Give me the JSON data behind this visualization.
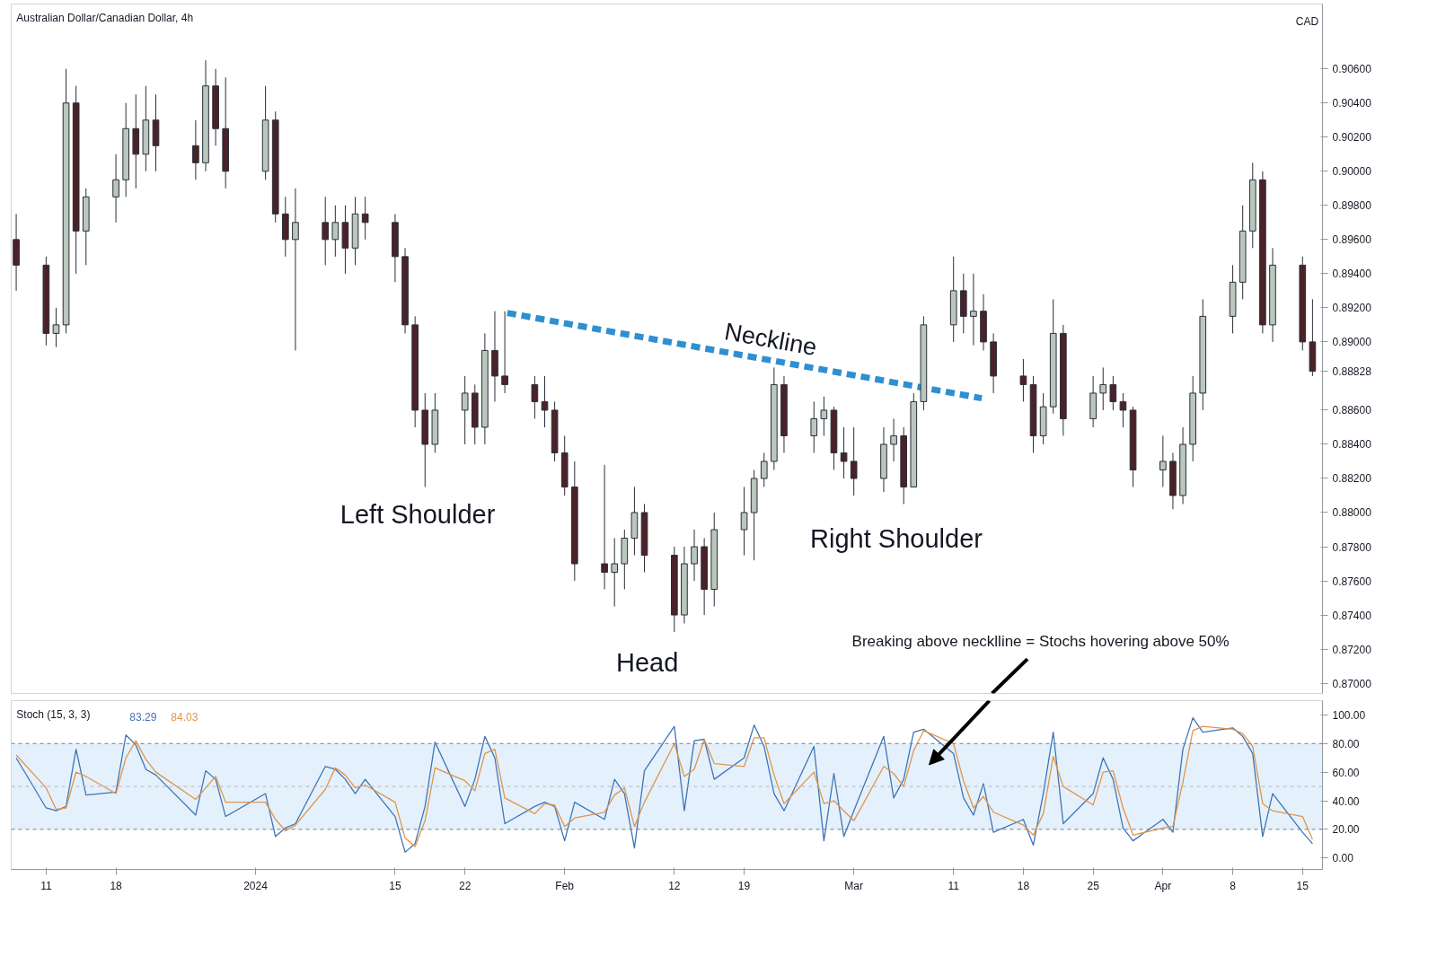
{
  "chart_data": [
    {
      "type": "candlestick",
      "title": "Australian Dollar/Canadian Dollar, 4h",
      "tick_labels": "y",
      "x": [
        "2023-12-08",
        "2023-12-11",
        "2023-12-12",
        "2023-12-13",
        "2023-12-14",
        "2023-12-15",
        "2023-12-18",
        "2023-12-19",
        "2023-12-20",
        "2023-12-21",
        "2023-12-22",
        "2023-12-26",
        "2023-12-27",
        "2023-12-28",
        "2023-12-29",
        "2024-01-02",
        "2024-01-03",
        "2024-01-04",
        "2024-01-05",
        "2024-01-08",
        "2024-01-09",
        "2024-01-10",
        "2024-01-11",
        "2024-01-12",
        "2024-01-15",
        "2024-01-16",
        "2024-01-17",
        "2024-01-18",
        "2024-01-19",
        "2024-01-22",
        "2024-01-23",
        "2024-01-24",
        "2024-01-25",
        "2024-01-26",
        "2024-01-29",
        "2024-01-30",
        "2024-01-31",
        "2024-02-01",
        "2024-02-02",
        "2024-02-05",
        "2024-02-06",
        "2024-02-07",
        "2024-02-08",
        "2024-02-09",
        "2024-02-12",
        "2024-02-13",
        "2024-02-14",
        "2024-02-15",
        "2024-02-16",
        "2024-02-19",
        "2024-02-20",
        "2024-02-21",
        "2024-02-22",
        "2024-02-23",
        "2024-02-26",
        "2024-02-27",
        "2024-02-28",
        "2024-02-29",
        "2024-03-01",
        "2024-03-04",
        "2024-03-05",
        "2024-03-06",
        "2024-03-07",
        "2024-03-08",
        "2024-03-11",
        "2024-03-12",
        "2024-03-13",
        "2024-03-14",
        "2024-03-15",
        "2024-03-18",
        "2024-03-19",
        "2024-03-20",
        "2024-03-21",
        "2024-03-22",
        "2024-03-25",
        "2024-03-26",
        "2024-03-27",
        "2024-03-28",
        "2024-03-29",
        "2024-04-01",
        "2024-04-02",
        "2024-04-03",
        "2024-04-04",
        "2024-04-05",
        "2024-04-08",
        "2024-04-09",
        "2024-04-10",
        "2024-04-11",
        "2024-04-12",
        "2024-04-15",
        "2024-04-16"
      ],
      "ohlc": [
        [
          0.896,
          0.8975,
          0.893,
          0.8945
        ],
        [
          0.8945,
          0.895,
          0.8898,
          0.8905
        ],
        [
          0.8905,
          0.892,
          0.8897,
          0.891
        ],
        [
          0.891,
          0.906,
          0.8905,
          0.904
        ],
        [
          0.904,
          0.905,
          0.894,
          0.8965
        ],
        [
          0.8965,
          0.899,
          0.8945,
          0.8985
        ],
        [
          0.8985,
          0.901,
          0.897,
          0.8995
        ],
        [
          0.8995,
          0.904,
          0.8985,
          0.9025
        ],
        [
          0.9025,
          0.9045,
          0.899,
          0.901
        ],
        [
          0.901,
          0.905,
          0.9,
          0.903
        ],
        [
          0.903,
          0.9045,
          0.9,
          0.9015
        ],
        [
          0.9015,
          0.903,
          0.8995,
          0.9005
        ],
        [
          0.9005,
          0.9065,
          0.9,
          0.905
        ],
        [
          0.905,
          0.906,
          0.9015,
          0.9025
        ],
        [
          0.9025,
          0.9055,
          0.899,
          0.9
        ],
        [
          0.9,
          0.905,
          0.8995,
          0.903
        ],
        [
          0.903,
          0.9035,
          0.897,
          0.8975
        ],
        [
          0.8975,
          0.8985,
          0.895,
          0.896
        ],
        [
          0.896,
          0.899,
          0.8895,
          0.897
        ],
        [
          0.897,
          0.8985,
          0.8945,
          0.896
        ],
        [
          0.896,
          0.898,
          0.895,
          0.897
        ],
        [
          0.897,
          0.898,
          0.894,
          0.8955
        ],
        [
          0.8955,
          0.8985,
          0.8945,
          0.8975
        ],
        [
          0.8975,
          0.8985,
          0.896,
          0.897
        ],
        [
          0.897,
          0.8975,
          0.8935,
          0.895
        ],
        [
          0.895,
          0.8955,
          0.8905,
          0.891
        ],
        [
          0.891,
          0.8915,
          0.885,
          0.886
        ],
        [
          0.886,
          0.887,
          0.8815,
          0.884
        ],
        [
          0.884,
          0.887,
          0.8835,
          0.886
        ],
        [
          0.886,
          0.888,
          0.884,
          0.887
        ],
        [
          0.887,
          0.8875,
          0.884,
          0.885
        ],
        [
          0.885,
          0.8905,
          0.884,
          0.8895
        ],
        [
          0.8895,
          0.8918,
          0.8865,
          0.888
        ],
        [
          0.888,
          0.8918,
          0.887,
          0.8875
        ],
        [
          0.8875,
          0.888,
          0.8855,
          0.8865
        ],
        [
          0.8865,
          0.888,
          0.885,
          0.886
        ],
        [
          0.886,
          0.8865,
          0.883,
          0.8835
        ],
        [
          0.8835,
          0.8845,
          0.881,
          0.8815
        ],
        [
          0.8815,
          0.883,
          0.876,
          0.877
        ],
        [
          0.877,
          0.8828,
          0.8755,
          0.8765
        ],
        [
          0.8765,
          0.8785,
          0.8745,
          0.877
        ],
        [
          0.877,
          0.879,
          0.8755,
          0.8785
        ],
        [
          0.8785,
          0.8815,
          0.8775,
          0.88
        ],
        [
          0.88,
          0.8805,
          0.8765,
          0.8775
        ],
        [
          0.8775,
          0.878,
          0.873,
          0.874
        ],
        [
          0.874,
          0.878,
          0.8735,
          0.877
        ],
        [
          0.877,
          0.879,
          0.876,
          0.878
        ],
        [
          0.878,
          0.8785,
          0.874,
          0.8755
        ],
        [
          0.8755,
          0.88,
          0.8745,
          0.879
        ],
        [
          0.879,
          0.8815,
          0.8775,
          0.88
        ],
        [
          0.88,
          0.8825,
          0.8772,
          0.882
        ],
        [
          0.882,
          0.8835,
          0.8815,
          0.883
        ],
        [
          0.883,
          0.8885,
          0.8825,
          0.8875
        ],
        [
          0.8875,
          0.888,
          0.8835,
          0.8845
        ],
        [
          0.8845,
          0.8865,
          0.8835,
          0.8855
        ],
        [
          0.8855,
          0.8868,
          0.8845,
          0.886
        ],
        [
          0.886,
          0.8862,
          0.8825,
          0.8835
        ],
        [
          0.8835,
          0.885,
          0.882,
          0.883
        ],
        [
          0.883,
          0.885,
          0.881,
          0.882
        ],
        [
          0.882,
          0.885,
          0.8812,
          0.884
        ],
        [
          0.884,
          0.8855,
          0.883,
          0.8845
        ],
        [
          0.8845,
          0.885,
          0.8805,
          0.8815
        ],
        [
          0.8815,
          0.887,
          0.8815,
          0.8865
        ],
        [
          0.8865,
          0.8915,
          0.886,
          0.891
        ],
        [
          0.891,
          0.895,
          0.89,
          0.893
        ],
        [
          0.893,
          0.894,
          0.8905,
          0.8915
        ],
        [
          0.8915,
          0.894,
          0.8898,
          0.8918
        ],
        [
          0.8918,
          0.8928,
          0.8895,
          0.89
        ],
        [
          0.89,
          0.8905,
          0.887,
          0.888
        ],
        [
          0.888,
          0.889,
          0.8865,
          0.8875
        ],
        [
          0.8875,
          0.888,
          0.8835,
          0.8845
        ],
        [
          0.8845,
          0.887,
          0.884,
          0.8862
        ],
        [
          0.8862,
          0.8925,
          0.8858,
          0.8905
        ],
        [
          0.8905,
          0.891,
          0.8845,
          0.8855
        ],
        [
          0.8855,
          0.888,
          0.885,
          0.887
        ],
        [
          0.887,
          0.8885,
          0.886,
          0.8875
        ],
        [
          0.8875,
          0.888,
          0.886,
          0.8865
        ],
        [
          0.8865,
          0.887,
          0.885,
          0.886
        ],
        [
          0.886,
          0.8862,
          0.8815,
          0.8825
        ],
        [
          0.8825,
          0.8845,
          0.8815,
          0.883
        ],
        [
          0.883,
          0.8835,
          0.8802,
          0.881
        ],
        [
          0.881,
          0.885,
          0.8805,
          0.884
        ],
        [
          0.884,
          0.888,
          0.883,
          0.887
        ],
        [
          0.887,
          0.8925,
          0.886,
          0.8915
        ],
        [
          0.8915,
          0.8945,
          0.8905,
          0.8935
        ],
        [
          0.8935,
          0.898,
          0.8925,
          0.8965
        ],
        [
          0.8965,
          0.9005,
          0.8955,
          0.8995
        ],
        [
          0.8995,
          0.9,
          0.8905,
          0.891
        ],
        [
          0.891,
          0.8955,
          0.89,
          0.8945
        ],
        [
          0.8945,
          0.895,
          0.8895,
          0.89
        ],
        [
          0.89,
          0.8925,
          0.888,
          0.88828
        ]
      ],
      "series": [
        {
          "name": "Neckline",
          "type": "line",
          "color": "#2f8fd0",
          "line_style": "dashed",
          "x": [
            "2024-01-26T06:00",
            "2024-03-13T20:00"
          ],
          "values": [
            0.8917,
            0.8867
          ]
        }
      ],
      "xlim": [
        "2023-12-07T12:00",
        "2024-04-17T00:00"
      ],
      "ylim": [
        0.8694,
        0.9098
      ],
      "yticks": [
        {
          "value": 0.87,
          "label": "0.87000"
        },
        {
          "value": 0.872,
          "label": "0.87200"
        },
        {
          "value": 0.874,
          "label": "0.87400"
        },
        {
          "value": 0.876,
          "label": "0.87600"
        },
        {
          "value": 0.878,
          "label": "0.87800"
        },
        {
          "value": 0.88,
          "label": "0.88000"
        },
        {
          "value": 0.882,
          "label": "0.88200"
        },
        {
          "value": 0.884,
          "label": "0.88400"
        },
        {
          "value": 0.886,
          "label": "0.88600"
        },
        {
          "value": 0.88828,
          "label": "0.88828"
        },
        {
          "value": 0.89,
          "label": "0.89000"
        },
        {
          "value": 0.892,
          "label": "0.89200"
        },
        {
          "value": 0.894,
          "label": "0.89400"
        },
        {
          "value": 0.896,
          "label": "0.89600"
        },
        {
          "value": 0.898,
          "label": "0.89800"
        },
        {
          "value": 0.9,
          "label": "0.90000"
        },
        {
          "value": 0.902,
          "label": "0.90200"
        },
        {
          "value": 0.904,
          "label": "0.90400"
        },
        {
          "value": 0.906,
          "label": "0.90600"
        }
      ],
      "annotations": [
        "Left Shoulder",
        "Head",
        "Right Shoulder",
        "Breaking above necklline = Stochs hovering above 50%",
        "CAD"
      ]
    },
    {
      "type": "line",
      "title": "Stoch (15, 3, 3)",
      "legend": "top left",
      "x": [
        "2023-12-08",
        "2023-12-11",
        "2023-12-12",
        "2023-12-13",
        "2023-12-14",
        "2023-12-15",
        "2023-12-18",
        "2023-12-19",
        "2023-12-20",
        "2023-12-21",
        "2023-12-22",
        "2023-12-26",
        "2023-12-27",
        "2023-12-28",
        "2023-12-29",
        "2024-01-02",
        "2024-01-03",
        "2024-01-04",
        "2024-01-05",
        "2024-01-08",
        "2024-01-09",
        "2024-01-10",
        "2024-01-11",
        "2024-01-12",
        "2024-01-15",
        "2024-01-16",
        "2024-01-17",
        "2024-01-18",
        "2024-01-19",
        "2024-01-22",
        "2024-01-23",
        "2024-01-24",
        "2024-01-25",
        "2024-01-26",
        "2024-01-29",
        "2024-01-30",
        "2024-01-31",
        "2024-02-01",
        "2024-02-02",
        "2024-02-05",
        "2024-02-06",
        "2024-02-07",
        "2024-02-08",
        "2024-02-09",
        "2024-02-12",
        "2024-02-13",
        "2024-02-14",
        "2024-02-15",
        "2024-02-16",
        "2024-02-19",
        "2024-02-20",
        "2024-02-21",
        "2024-02-22",
        "2024-02-23",
        "2024-02-26",
        "2024-02-27",
        "2024-02-28",
        "2024-02-29",
        "2024-03-01",
        "2024-03-04",
        "2024-03-05",
        "2024-03-06",
        "2024-03-07",
        "2024-03-08",
        "2024-03-11",
        "2024-03-12",
        "2024-03-13",
        "2024-03-14",
        "2024-03-15",
        "2024-03-18",
        "2024-03-19",
        "2024-03-20",
        "2024-03-21",
        "2024-03-22",
        "2024-03-25",
        "2024-03-26",
        "2024-03-27",
        "2024-03-28",
        "2024-03-29",
        "2024-04-01",
        "2024-04-02",
        "2024-04-03",
        "2024-04-04",
        "2024-04-05",
        "2024-04-08",
        "2024-04-09",
        "2024-04-10",
        "2024-04-11",
        "2024-04-12",
        "2024-04-15",
        "2024-04-16"
      ],
      "series": [
        {
          "name": "83.29",
          "color": "#3f74b5",
          "values": [
            70,
            35,
            33,
            36,
            76,
            44,
            46,
            86,
            79,
            62,
            58,
            30,
            61,
            55,
            29,
            45,
            15,
            21,
            24,
            64,
            62,
            55,
            45,
            55,
            29,
            4,
            10,
            36,
            81,
            36,
            55,
            85,
            70,
            24,
            36,
            39,
            36,
            12,
            39,
            27,
            55,
            45,
            7,
            61,
            92,
            33,
            82,
            83,
            55,
            70,
            93,
            78,
            45,
            33,
            78,
            12,
            59,
            15,
            33,
            85,
            42,
            55,
            88,
            90,
            73,
            42,
            30,
            52,
            18,
            27,
            9,
            45,
            88,
            24,
            45,
            70,
            55,
            21,
            12,
            27,
            18,
            76,
            98,
            88,
            91,
            85,
            73,
            15,
            45,
            18,
            10
          ]
        },
        {
          "name": "84.03",
          "color": "#e0954b",
          "values": [
            72,
            49,
            34,
            35,
            60,
            57,
            45,
            70,
            82,
            69,
            60,
            41,
            49,
            57,
            39,
            39,
            27,
            19,
            23,
            48,
            63,
            58,
            49,
            51,
            39,
            14,
            8,
            26,
            63,
            54,
            47,
            73,
            76,
            42,
            31,
            38,
            37,
            22,
            28,
            32,
            44,
            49,
            22,
            39,
            80,
            57,
            62,
            83,
            66,
            64,
            84,
            84,
            58,
            38,
            60,
            38,
            40,
            33,
            26,
            64,
            59,
            50,
            75,
            89,
            80,
            54,
            35,
            43,
            32,
            23,
            16,
            31,
            71,
            50,
            37,
            60,
            61,
            35,
            16,
            21,
            22,
            53,
            89,
            92,
            90,
            87,
            78,
            38,
            33,
            29,
            13
          ]
        }
      ],
      "xlim": [
        "2023-12-07T12:00",
        "2024-04-17T00:00"
      ],
      "xticks": [
        {
          "value": "2023-12-11",
          "label": "11"
        },
        {
          "value": "2023-12-18",
          "label": "18"
        },
        {
          "value": "2024-01-01",
          "label": "2024"
        },
        {
          "value": "2024-01-15",
          "label": "15"
        },
        {
          "value": "2024-01-22",
          "label": "22"
        },
        {
          "value": "2024-02-01",
          "label": "Feb"
        },
        {
          "value": "2024-02-12",
          "label": "12"
        },
        {
          "value": "2024-02-19",
          "label": "19"
        },
        {
          "value": "2024-03-01",
          "label": "Mar"
        },
        {
          "value": "2024-03-11",
          "label": "11"
        },
        {
          "value": "2024-03-18",
          "label": "18"
        },
        {
          "value": "2024-03-25",
          "label": "25"
        },
        {
          "value": "2024-04-01",
          "label": "Apr"
        },
        {
          "value": "2024-04-08",
          "label": "8"
        },
        {
          "value": "2024-04-15",
          "label": "15"
        }
      ],
      "ylim": [
        -8,
        110
      ],
      "yticks": [
        {
          "value": 0,
          "label": "0.00"
        },
        {
          "value": 20,
          "label": "20.00"
        },
        {
          "value": 40,
          "label": "40.00"
        },
        {
          "value": 60,
          "label": "60.00"
        },
        {
          "value": 80,
          "label": "80.00"
        },
        {
          "value": 100,
          "label": "100.00"
        }
      ],
      "bands": [
        {
          "axis": "y",
          "from": 20,
          "to": 80,
          "color": "#e4f1fc"
        }
      ],
      "ref_lines": [
        {
          "axis": "y",
          "value": 20,
          "line_style": "dashed",
          "color": "#787b86"
        },
        {
          "axis": "y",
          "value": 50,
          "line_style": "dashed",
          "color": "#b2b5be"
        },
        {
          "axis": "y",
          "value": 80,
          "line_style": "dashed",
          "color": "#787b86"
        }
      ]
    }
  ]
}
